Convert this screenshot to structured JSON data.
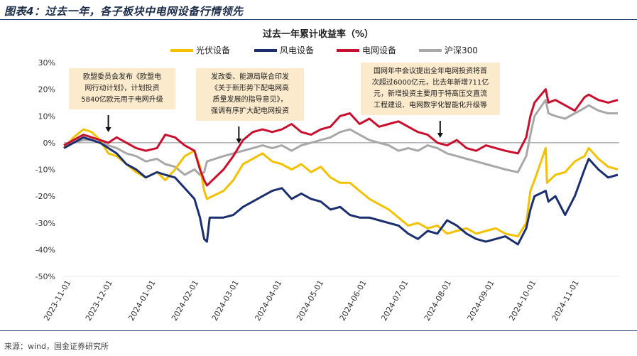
{
  "figure_title": "图表4：过去一年，各子板块中电网设备行情领先",
  "source": "来源：wind，国金证券研究所",
  "colors": {
    "pv": "#f2c100",
    "wind": "#1b2f6e",
    "grid": "#c8102e",
    "hs300": "#a8a8a8",
    "axis": "#1f3a68",
    "annotation_bg": "#fbeacb"
  },
  "chart_data": {
    "type": "line",
    "title": "过去一年累计收益率（%）",
    "xlabel": "",
    "ylabel": "",
    "ylim": [
      -50,
      30
    ],
    "yticks": [
      30,
      20,
      10,
      0,
      -10,
      -20,
      -30,
      -40,
      -50
    ],
    "ytick_labels": [
      "30%",
      "20%",
      "10%",
      "0%",
      "-10%",
      "-20%",
      "-30%",
      "-40%",
      "-50%"
    ],
    "x_range": [
      "2023-10-27",
      "2024-11-30"
    ],
    "xticks": [
      "2023-11-01",
      "2023-12-01",
      "2024-01-01",
      "2024-02-01",
      "2024-03-01",
      "2024-04-01",
      "2024-05-01",
      "2024-06-01",
      "2024-07-01",
      "2024-08-01",
      "2024-09-01",
      "2024-10-01",
      "2024-11-01"
    ],
    "legend_position": "top",
    "grid": false,
    "series": [
      {
        "name": "光伏设备",
        "color": "#f2c100",
        "points": [
          [
            "2023-10-27",
            -2
          ],
          [
            "2023-11-03",
            2
          ],
          [
            "2023-11-10",
            5
          ],
          [
            "2023-11-16",
            4
          ],
          [
            "2023-11-22",
            1
          ],
          [
            "2023-11-28",
            -4
          ],
          [
            "2023-12-04",
            -5
          ],
          [
            "2023-12-11",
            -8
          ],
          [
            "2023-12-18",
            -11
          ],
          [
            "2023-12-25",
            -13
          ],
          [
            "2024-01-02",
            -11
          ],
          [
            "2024-01-08",
            -14
          ],
          [
            "2024-01-15",
            -10
          ],
          [
            "2024-01-22",
            -5
          ],
          [
            "2024-01-29",
            -3
          ],
          [
            "2024-02-02",
            -9
          ],
          [
            "2024-02-05",
            -18
          ],
          [
            "2024-02-07",
            -21
          ],
          [
            "2024-02-19",
            -18
          ],
          [
            "2024-02-26",
            -14
          ],
          [
            "2024-03-04",
            -8
          ],
          [
            "2024-03-11",
            -6
          ],
          [
            "2024-03-18",
            -4
          ],
          [
            "2024-03-25",
            -7
          ],
          [
            "2024-04-01",
            -8
          ],
          [
            "2024-04-08",
            -10
          ],
          [
            "2024-04-15",
            -8
          ],
          [
            "2024-04-22",
            -11
          ],
          [
            "2024-04-29",
            -9
          ],
          [
            "2024-05-06",
            -13
          ],
          [
            "2024-05-13",
            -15
          ],
          [
            "2024-05-20",
            -15
          ],
          [
            "2024-05-27",
            -18
          ],
          [
            "2024-06-03",
            -21
          ],
          [
            "2024-06-10",
            -23
          ],
          [
            "2024-06-17",
            -25
          ],
          [
            "2024-06-24",
            -28
          ],
          [
            "2024-07-01",
            -31
          ],
          [
            "2024-07-08",
            -30
          ],
          [
            "2024-07-15",
            -32
          ],
          [
            "2024-07-22",
            -31
          ],
          [
            "2024-07-29",
            -34
          ],
          [
            "2024-08-05",
            -33
          ],
          [
            "2024-08-12",
            -32
          ],
          [
            "2024-08-19",
            -34
          ],
          [
            "2024-08-26",
            -33
          ],
          [
            "2024-09-02",
            -32
          ],
          [
            "2024-09-09",
            -34
          ],
          [
            "2024-09-18",
            -35
          ],
          [
            "2024-09-24",
            -30
          ],
          [
            "2024-09-27",
            -18
          ],
          [
            "2024-09-30",
            -14
          ],
          [
            "2024-10-08",
            -2
          ],
          [
            "2024-10-09",
            -15
          ],
          [
            "2024-10-15",
            -12
          ],
          [
            "2024-10-22",
            -11
          ],
          [
            "2024-10-29",
            -7
          ],
          [
            "2024-11-05",
            -5
          ],
          [
            "2024-11-08",
            -2
          ],
          [
            "2024-11-15",
            -6
          ],
          [
            "2024-11-22",
            -9
          ],
          [
            "2024-11-29",
            -10
          ]
        ]
      },
      {
        "name": "风电设备",
        "color": "#1b2f6e",
        "points": [
          [
            "2023-10-27",
            -2
          ],
          [
            "2023-11-03",
            0
          ],
          [
            "2023-11-10",
            2
          ],
          [
            "2023-11-16",
            1
          ],
          [
            "2023-11-22",
            0
          ],
          [
            "2023-11-28",
            -2
          ],
          [
            "2023-12-04",
            -4
          ],
          [
            "2023-12-11",
            -8
          ],
          [
            "2023-12-18",
            -10
          ],
          [
            "2023-12-25",
            -13
          ],
          [
            "2024-01-02",
            -11
          ],
          [
            "2024-01-08",
            -12
          ],
          [
            "2024-01-15",
            -13
          ],
          [
            "2024-01-22",
            -17
          ],
          [
            "2024-01-29",
            -21
          ],
          [
            "2024-02-02",
            -28
          ],
          [
            "2024-02-05",
            -36
          ],
          [
            "2024-02-07",
            -37
          ],
          [
            "2024-02-09",
            -28
          ],
          [
            "2024-02-19",
            -28
          ],
          [
            "2024-02-26",
            -27
          ],
          [
            "2024-03-04",
            -24
          ],
          [
            "2024-03-11",
            -22
          ],
          [
            "2024-03-18",
            -20
          ],
          [
            "2024-03-25",
            -18
          ],
          [
            "2024-04-01",
            -17
          ],
          [
            "2024-04-08",
            -21
          ],
          [
            "2024-04-15",
            -19
          ],
          [
            "2024-04-22",
            -21
          ],
          [
            "2024-04-29",
            -22
          ],
          [
            "2024-05-06",
            -25
          ],
          [
            "2024-05-13",
            -24
          ],
          [
            "2024-05-20",
            -27
          ],
          [
            "2024-05-27",
            -28
          ],
          [
            "2024-06-03",
            -28
          ],
          [
            "2024-06-10",
            -29
          ],
          [
            "2024-06-17",
            -30
          ],
          [
            "2024-06-24",
            -31
          ],
          [
            "2024-07-01",
            -34
          ],
          [
            "2024-07-08",
            -36
          ],
          [
            "2024-07-15",
            -33
          ],
          [
            "2024-07-22",
            -34
          ],
          [
            "2024-07-29",
            -29
          ],
          [
            "2024-08-05",
            -31
          ],
          [
            "2024-08-12",
            -34
          ],
          [
            "2024-08-19",
            -36
          ],
          [
            "2024-08-26",
            -37
          ],
          [
            "2024-09-02",
            -36
          ],
          [
            "2024-09-09",
            -35
          ],
          [
            "2024-09-18",
            -38
          ],
          [
            "2024-09-24",
            -32
          ],
          [
            "2024-09-27",
            -25
          ],
          [
            "2024-09-30",
            -20
          ],
          [
            "2024-10-08",
            -18
          ],
          [
            "2024-10-10",
            -22
          ],
          [
            "2024-10-15",
            -20
          ],
          [
            "2024-10-22",
            -27
          ],
          [
            "2024-10-29",
            -20
          ],
          [
            "2024-11-05",
            -10
          ],
          [
            "2024-11-08",
            -6
          ],
          [
            "2024-11-15",
            -10
          ],
          [
            "2024-11-22",
            -13
          ],
          [
            "2024-11-29",
            -12
          ]
        ]
      },
      {
        "name": "电网设备",
        "color": "#c8102e",
        "points": [
          [
            "2023-10-27",
            -1
          ],
          [
            "2023-11-03",
            1
          ],
          [
            "2023-11-10",
            3
          ],
          [
            "2023-11-16",
            2
          ],
          [
            "2023-11-22",
            1
          ],
          [
            "2023-11-28",
            0
          ],
          [
            "2023-12-04",
            2
          ],
          [
            "2023-12-11",
            0
          ],
          [
            "2023-12-18",
            -2
          ],
          [
            "2023-12-25",
            -3
          ],
          [
            "2024-01-02",
            -2
          ],
          [
            "2024-01-08",
            3
          ],
          [
            "2024-01-15",
            2
          ],
          [
            "2024-01-22",
            -1
          ],
          [
            "2024-01-29",
            -3
          ],
          [
            "2024-02-02",
            -10
          ],
          [
            "2024-02-05",
            -14
          ],
          [
            "2024-02-07",
            -16
          ],
          [
            "2024-02-19",
            -10
          ],
          [
            "2024-02-26",
            -5
          ],
          [
            "2024-03-04",
            1
          ],
          [
            "2024-03-11",
            4
          ],
          [
            "2024-03-18",
            5
          ],
          [
            "2024-03-25",
            4
          ],
          [
            "2024-04-01",
            5
          ],
          [
            "2024-04-08",
            7
          ],
          [
            "2024-04-15",
            4
          ],
          [
            "2024-04-22",
            3
          ],
          [
            "2024-04-29",
            5
          ],
          [
            "2024-05-06",
            6
          ],
          [
            "2024-05-13",
            10
          ],
          [
            "2024-05-20",
            11
          ],
          [
            "2024-05-27",
            7
          ],
          [
            "2024-06-03",
            9
          ],
          [
            "2024-06-10",
            6
          ],
          [
            "2024-06-17",
            7
          ],
          [
            "2024-06-24",
            8
          ],
          [
            "2024-07-01",
            6
          ],
          [
            "2024-07-08",
            4
          ],
          [
            "2024-07-15",
            3
          ],
          [
            "2024-07-22",
            0
          ],
          [
            "2024-07-29",
            -1
          ],
          [
            "2024-08-05",
            1
          ],
          [
            "2024-08-12",
            -2
          ],
          [
            "2024-08-19",
            -3
          ],
          [
            "2024-08-26",
            -1
          ],
          [
            "2024-09-02",
            -2
          ],
          [
            "2024-09-09",
            -3
          ],
          [
            "2024-09-18",
            -4
          ],
          [
            "2024-09-24",
            2
          ],
          [
            "2024-09-27",
            10
          ],
          [
            "2024-09-30",
            15
          ],
          [
            "2024-10-08",
            20
          ],
          [
            "2024-10-10",
            15
          ],
          [
            "2024-10-15",
            16
          ],
          [
            "2024-10-22",
            14
          ],
          [
            "2024-10-29",
            12
          ],
          [
            "2024-11-05",
            17
          ],
          [
            "2024-11-08",
            18
          ],
          [
            "2024-11-15",
            16
          ],
          [
            "2024-11-22",
            15
          ],
          [
            "2024-11-29",
            16
          ]
        ]
      },
      {
        "name": "沪深300",
        "color": "#a8a8a8",
        "points": [
          [
            "2023-10-27",
            -1
          ],
          [
            "2023-11-03",
            0
          ],
          [
            "2023-11-10",
            1
          ],
          [
            "2023-11-16",
            1
          ],
          [
            "2023-11-22",
            0
          ],
          [
            "2023-11-28",
            -1
          ],
          [
            "2023-12-04",
            -2
          ],
          [
            "2023-12-11",
            -4
          ],
          [
            "2023-12-18",
            -5
          ],
          [
            "2023-12-25",
            -7
          ],
          [
            "2024-01-02",
            -6
          ],
          [
            "2024-01-08",
            -8
          ],
          [
            "2024-01-15",
            -9
          ],
          [
            "2024-01-22",
            -12
          ],
          [
            "2024-01-29",
            -10
          ],
          [
            "2024-02-02",
            -12
          ],
          [
            "2024-02-05",
            -11
          ],
          [
            "2024-02-07",
            -7
          ],
          [
            "2024-02-19",
            -5
          ],
          [
            "2024-02-26",
            -4
          ],
          [
            "2024-03-04",
            -3
          ],
          [
            "2024-03-11",
            -2
          ],
          [
            "2024-03-18",
            -1
          ],
          [
            "2024-03-25",
            -2
          ],
          [
            "2024-04-01",
            -1
          ],
          [
            "2024-04-08",
            -3
          ],
          [
            "2024-04-15",
            -1
          ],
          [
            "2024-04-22",
            0
          ],
          [
            "2024-04-29",
            1
          ],
          [
            "2024-05-06",
            2
          ],
          [
            "2024-05-13",
            4
          ],
          [
            "2024-05-20",
            5
          ],
          [
            "2024-05-27",
            3
          ],
          [
            "2024-06-03",
            1
          ],
          [
            "2024-06-10",
            0
          ],
          [
            "2024-06-17",
            -1
          ],
          [
            "2024-06-24",
            -3
          ],
          [
            "2024-07-01",
            -2
          ],
          [
            "2024-07-08",
            -3
          ],
          [
            "2024-07-15",
            -1
          ],
          [
            "2024-07-22",
            -2
          ],
          [
            "2024-07-29",
            -4
          ],
          [
            "2024-08-05",
            -5
          ],
          [
            "2024-08-12",
            -6
          ],
          [
            "2024-08-19",
            -7
          ],
          [
            "2024-08-26",
            -8
          ],
          [
            "2024-09-02",
            -9
          ],
          [
            "2024-09-09",
            -10
          ],
          [
            "2024-09-18",
            -11
          ],
          [
            "2024-09-24",
            -5
          ],
          [
            "2024-09-27",
            3
          ],
          [
            "2024-09-30",
            10
          ],
          [
            "2024-10-08",
            16
          ],
          [
            "2024-10-10",
            11
          ],
          [
            "2024-10-15",
            10
          ],
          [
            "2024-10-22",
            9
          ],
          [
            "2024-10-29",
            11
          ],
          [
            "2024-11-05",
            13
          ],
          [
            "2024-11-08",
            14
          ],
          [
            "2024-11-15",
            12
          ],
          [
            "2024-11-22",
            11
          ],
          [
            "2024-11-29",
            11
          ]
        ]
      }
    ],
    "annotations": [
      {
        "lines": [
          "欧盟委员会发布《欧盟电",
          "网行动计划》，计划投资",
          "5840亿欧元用于电网升级"
        ],
        "arrow_date": "2023-11-28"
      },
      {
        "lines": [
          "发改委、能源局联合印发",
          "《关于新形势下配电网高",
          "质量发展的指导意见》，",
          "强调有序扩大配电网投资"
        ],
        "arrow_date": "2024-03-01"
      },
      {
        "lines": [
          "国网年中会议提出全年电网投资将首",
          "次超过6000亿元，比去年新增711亿",
          "元，新增投资主要用于特高压交直流",
          "工程建设、电网数字化智能化升级等"
        ],
        "arrow_date": "2024-07-24"
      }
    ]
  }
}
